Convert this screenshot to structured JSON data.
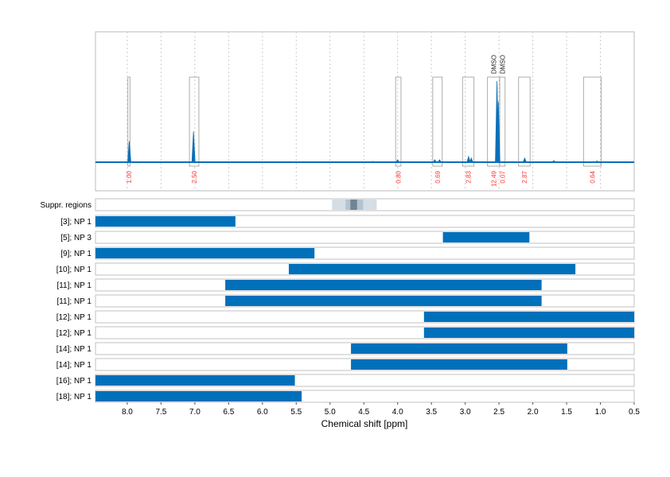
{
  "chart_data": {
    "type": "line",
    "xlabel": "Chemical shift [ppm]",
    "xlim": [
      8.47,
      0.5
    ],
    "x_ticks": [
      "8.0",
      "7.5",
      "7.0",
      "6.5",
      "6.0",
      "5.5",
      "5.0",
      "4.5",
      "4.0",
      "3.5",
      "3.0",
      "2.5",
      "2.0",
      "1.5",
      "1.0",
      "0.5"
    ],
    "grid": "vertical dashed",
    "colors": {
      "spectrum": "#0b6fb8",
      "bar": "#0070bb",
      "integral_label": "#ff3333",
      "region_box": "#999999",
      "suppr_light": "#d5dde5",
      "suppr_mid": "#b5c3d0",
      "suppr_dark": "#6f8595"
    },
    "spectrum_peaks": [
      {
        "ppm": 7.97,
        "height": 0.26
      },
      {
        "ppm": 7.02,
        "height": 0.38
      },
      {
        "ppm": 4.0,
        "height": 0.03
      },
      {
        "ppm": 3.45,
        "height": 0.03
      },
      {
        "ppm": 3.38,
        "height": 0.03
      },
      {
        "ppm": 2.95,
        "height": 0.07
      },
      {
        "ppm": 2.91,
        "height": 0.05
      },
      {
        "ppm": 2.53,
        "height": 1.0
      },
      {
        "ppm": 2.51,
        "height": 0.75
      },
      {
        "ppm": 2.12,
        "height": 0.05
      },
      {
        "ppm": 4.37,
        "height": 0.01
      },
      {
        "ppm": 1.69,
        "height": 0.02
      },
      {
        "ppm": 1.05,
        "height": 0.015
      }
    ],
    "integration_regions": [
      {
        "from": 7.99,
        "to": 7.96,
        "label": "1.00"
      },
      {
        "from": 7.08,
        "to": 6.94,
        "label": "2.50"
      },
      {
        "from": 4.03,
        "to": 3.95,
        "label": "0.80"
      },
      {
        "from": 3.48,
        "to": 3.34,
        "label": "0.69"
      },
      {
        "from": 3.04,
        "to": 2.87,
        "label": "2.83"
      },
      {
        "from": 2.67,
        "to": 2.49,
        "label": "12.49",
        "annotation": "DMSO"
      },
      {
        "from": 2.49,
        "to": 2.41,
        "label": "0.07",
        "annotation": "DMSO"
      },
      {
        "from": 2.21,
        "to": 2.04,
        "label": "2.87"
      },
      {
        "from": 1.25,
        "to": 0.99,
        "label": "0.64"
      }
    ],
    "suppressed_regions_label": "Suppr. regions",
    "suppressed_regions": [
      {
        "from": 4.97,
        "to": 4.31,
        "level": "light"
      },
      {
        "from": 4.77,
        "to": 4.51,
        "level": "mid"
      },
      {
        "from": 4.7,
        "to": 4.6,
        "level": "dark"
      }
    ],
    "ranges": [
      {
        "label": "[3]; NP 1",
        "from": 8.47,
        "to": 6.4
      },
      {
        "label": "[5]; NP 3",
        "from": 3.33,
        "to": 2.05
      },
      {
        "label": "[9]; NP 1",
        "from": 8.47,
        "to": 5.23
      },
      {
        "label": "[10]; NP 1",
        "from": 5.61,
        "to": 1.37
      },
      {
        "label": "[11]; NP 1",
        "from": 6.55,
        "to": 1.87
      },
      {
        "label": "[11]; NP 1",
        "from": 6.55,
        "to": 1.87
      },
      {
        "label": "[12]; NP 1",
        "from": 3.61,
        "to": 0.5
      },
      {
        "label": "[12]; NP 1",
        "from": 3.61,
        "to": 0.5
      },
      {
        "label": "[14]; NP 1",
        "from": 4.69,
        "to": 1.49
      },
      {
        "label": "[14]; NP 1",
        "from": 4.69,
        "to": 1.49
      },
      {
        "label": "[16]; NP 1",
        "from": 8.47,
        "to": 5.52
      },
      {
        "label": "[18]; NP 1",
        "from": 8.47,
        "to": 5.42
      }
    ]
  }
}
